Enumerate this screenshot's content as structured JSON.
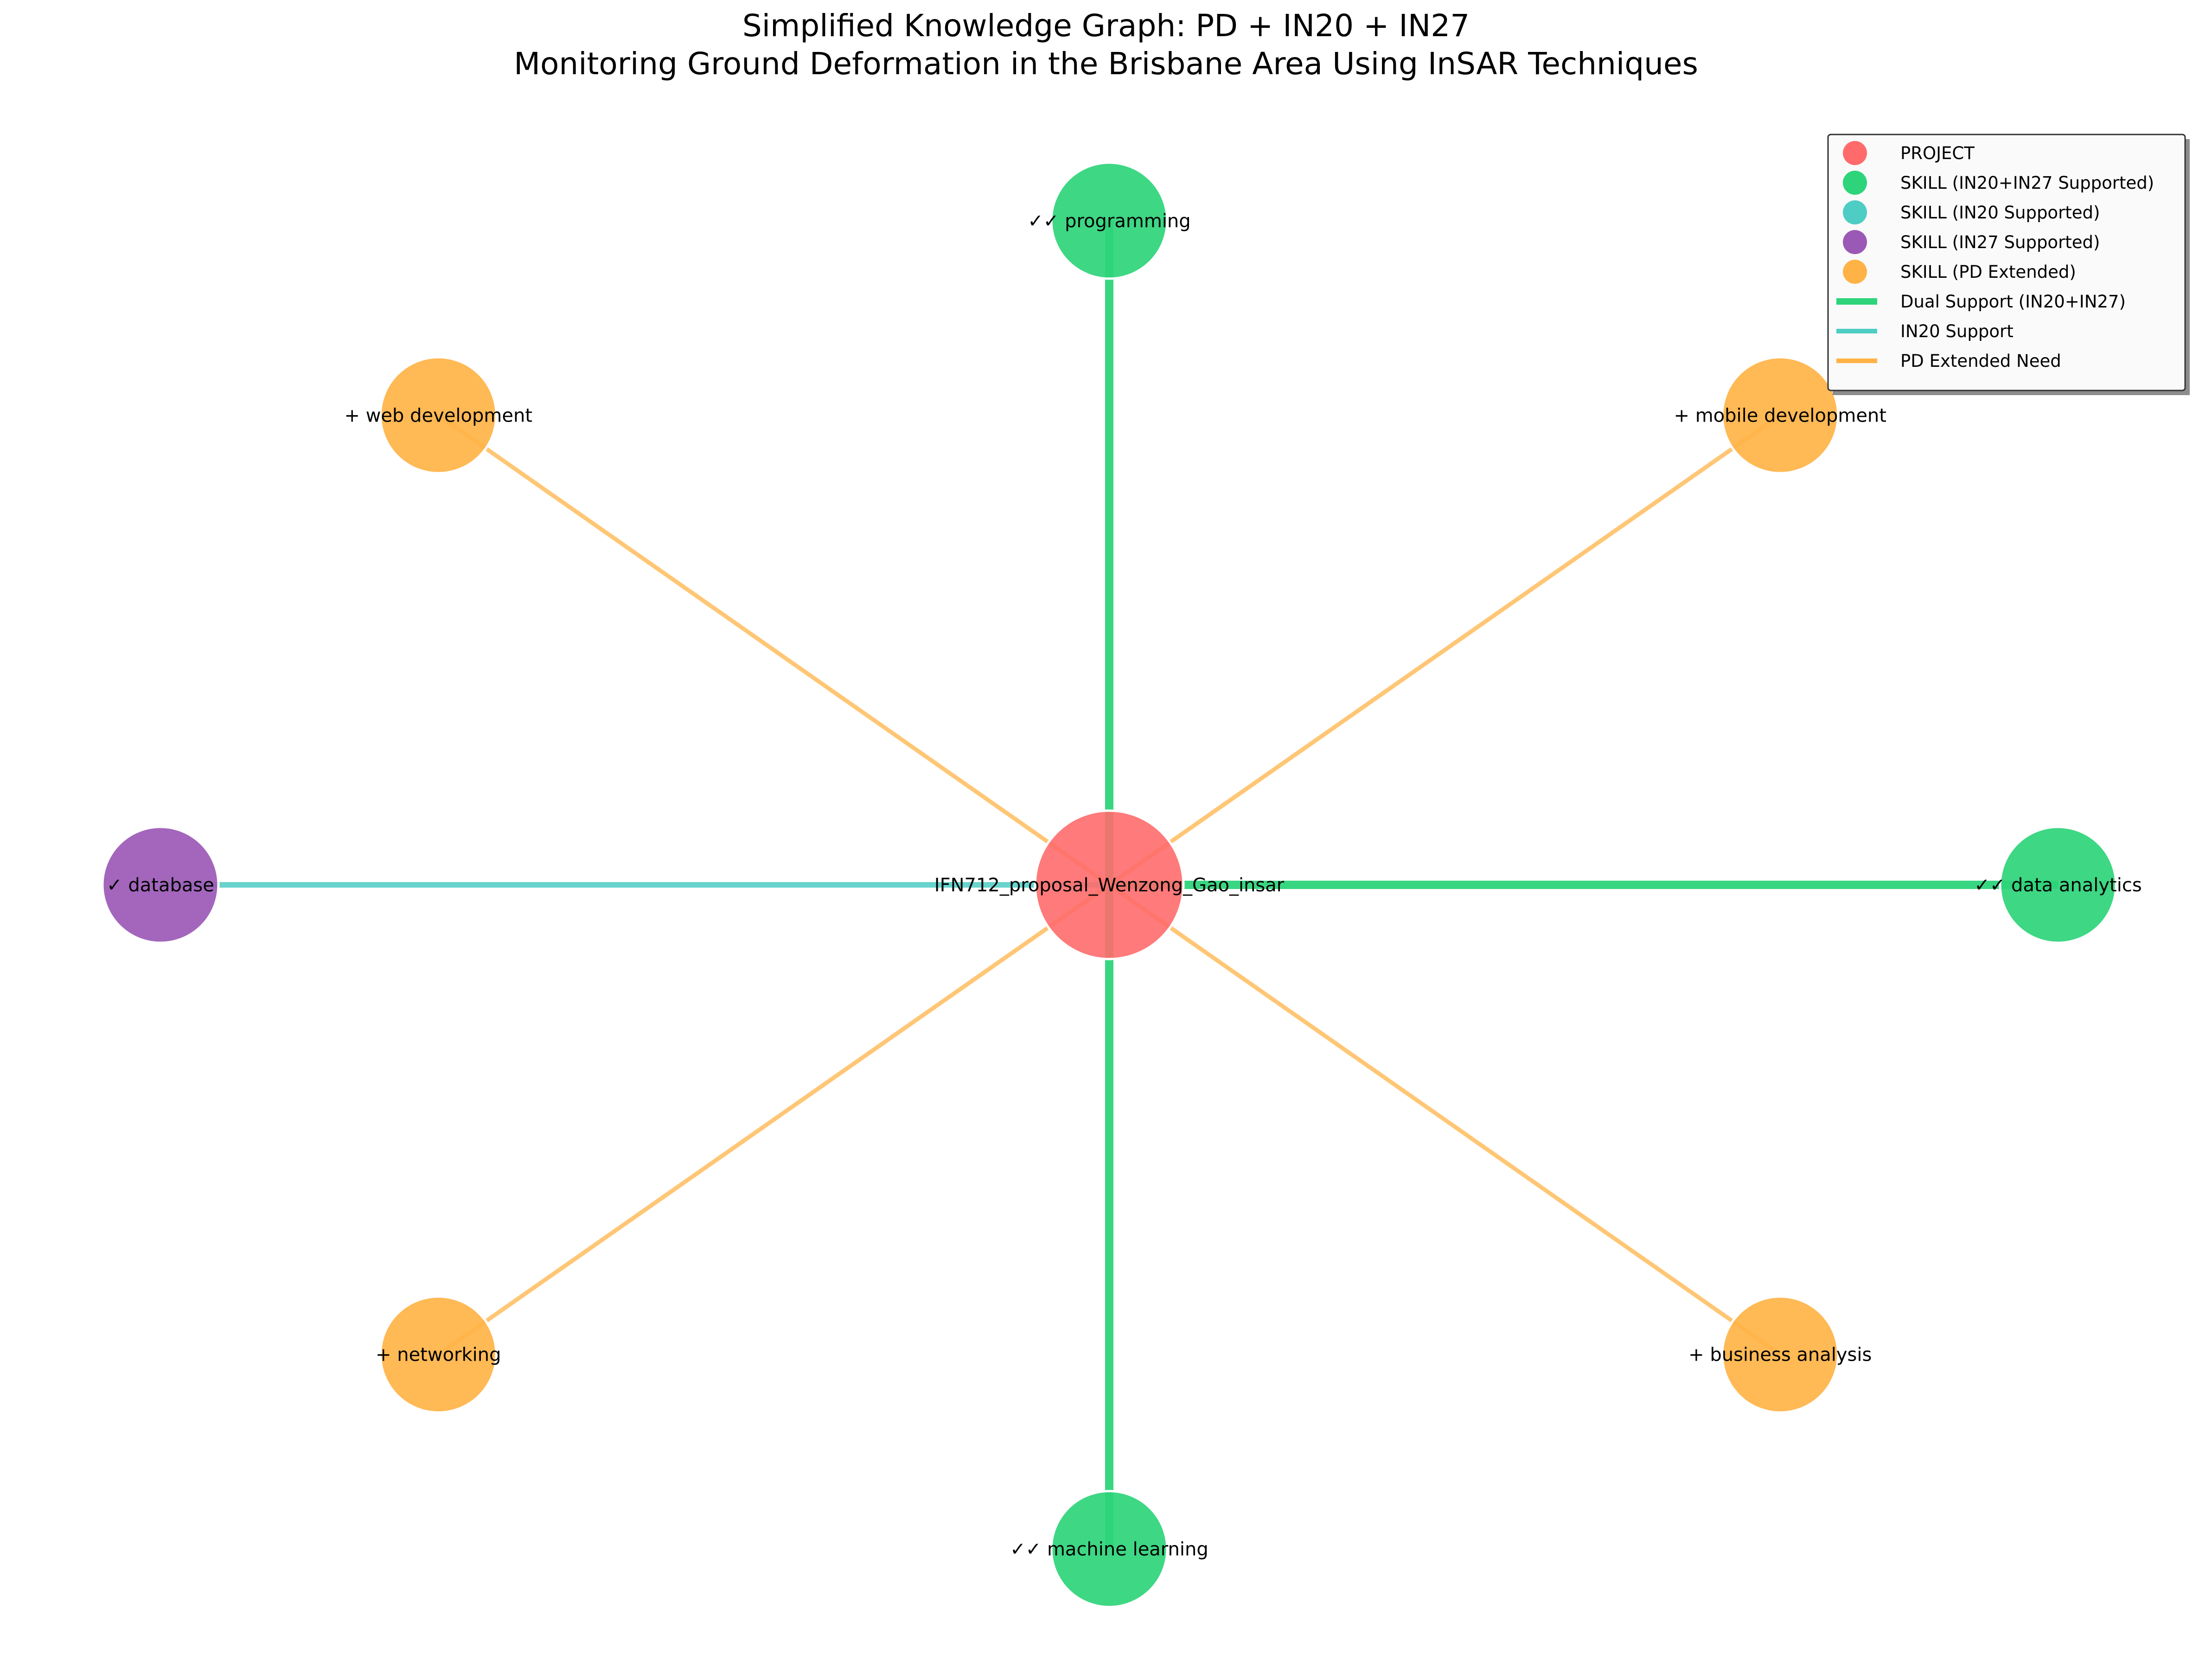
{
  "title": {
    "line1": "Simplified Knowledge Graph: PD + IN20 + IN27",
    "line2": "Monitoring Ground Deformation in the Brisbane Area Using InSAR Techniques"
  },
  "colors": {
    "project": "#ff6b6b",
    "dual": "#2ed47a",
    "in20": "#4ecdc4",
    "in27": "#9b59b6",
    "pd": "#ffb347"
  },
  "project_node": {
    "label": "IFN712_proposal_Wenzong_Gao_insar",
    "type": "project"
  },
  "skill_nodes": [
    {
      "id": "programming",
      "label": "✓✓ programming",
      "type": "dual",
      "edge": "dual"
    },
    {
      "id": "mobile-development",
      "label": "+ mobile development",
      "type": "pd",
      "edge": "pd"
    },
    {
      "id": "data-analytics",
      "label": "✓✓ data analytics",
      "type": "dual",
      "edge": "dual"
    },
    {
      "id": "business-analysis",
      "label": "+ business analysis",
      "type": "pd",
      "edge": "pd"
    },
    {
      "id": "machine-learning",
      "label": "✓✓ machine learning",
      "type": "dual",
      "edge": "dual"
    },
    {
      "id": "networking",
      "label": "+ networking",
      "type": "pd",
      "edge": "pd"
    },
    {
      "id": "database",
      "label": "✓ database",
      "type": "in27",
      "edge": "in20"
    },
    {
      "id": "web-development",
      "label": "+ web development",
      "type": "pd",
      "edge": "pd"
    }
  ],
  "legend": {
    "markers": [
      {
        "label": "PROJECT",
        "color": "#ff6b6b"
      },
      {
        "label": "SKILL (IN20+IN27 Supported)",
        "color": "#2ed47a"
      },
      {
        "label": "SKILL (IN20 Supported)",
        "color": "#4ecdc4"
      },
      {
        "label": "SKILL (IN27 Supported)",
        "color": "#9b59b6"
      },
      {
        "label": "SKILL (PD Extended)",
        "color": "#ffb347"
      }
    ],
    "lines": [
      {
        "label": "Dual Support (IN20+IN27)",
        "color": "#2ed47a"
      },
      {
        "label": "IN20 Support",
        "color": "#4ecdc4"
      },
      {
        "label": "PD Extended Need",
        "color": "#ffb347"
      }
    ]
  }
}
